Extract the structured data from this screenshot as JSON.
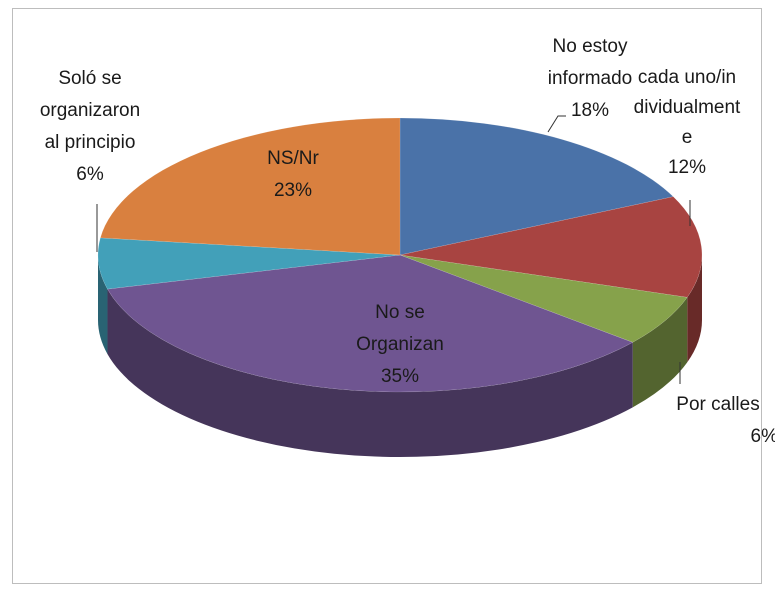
{
  "chart_data": {
    "type": "pie",
    "categories": [
      "No estoy informado",
      "cada uno/individualmente",
      "Por calles",
      "No se Organizan",
      "Soló se organizaron al principio",
      "NS/Nr"
    ],
    "values": [
      18,
      12,
      6,
      35,
      6,
      23
    ],
    "value_labels": [
      "18%",
      "12%",
      "6%",
      "35%",
      "6%",
      "23%"
    ],
    "colors": [
      "#4a72a8",
      "#a84441",
      "#86a24b",
      "#6f5591",
      "#42a0b9",
      "#d9803f"
    ],
    "three_d": true
  }
}
